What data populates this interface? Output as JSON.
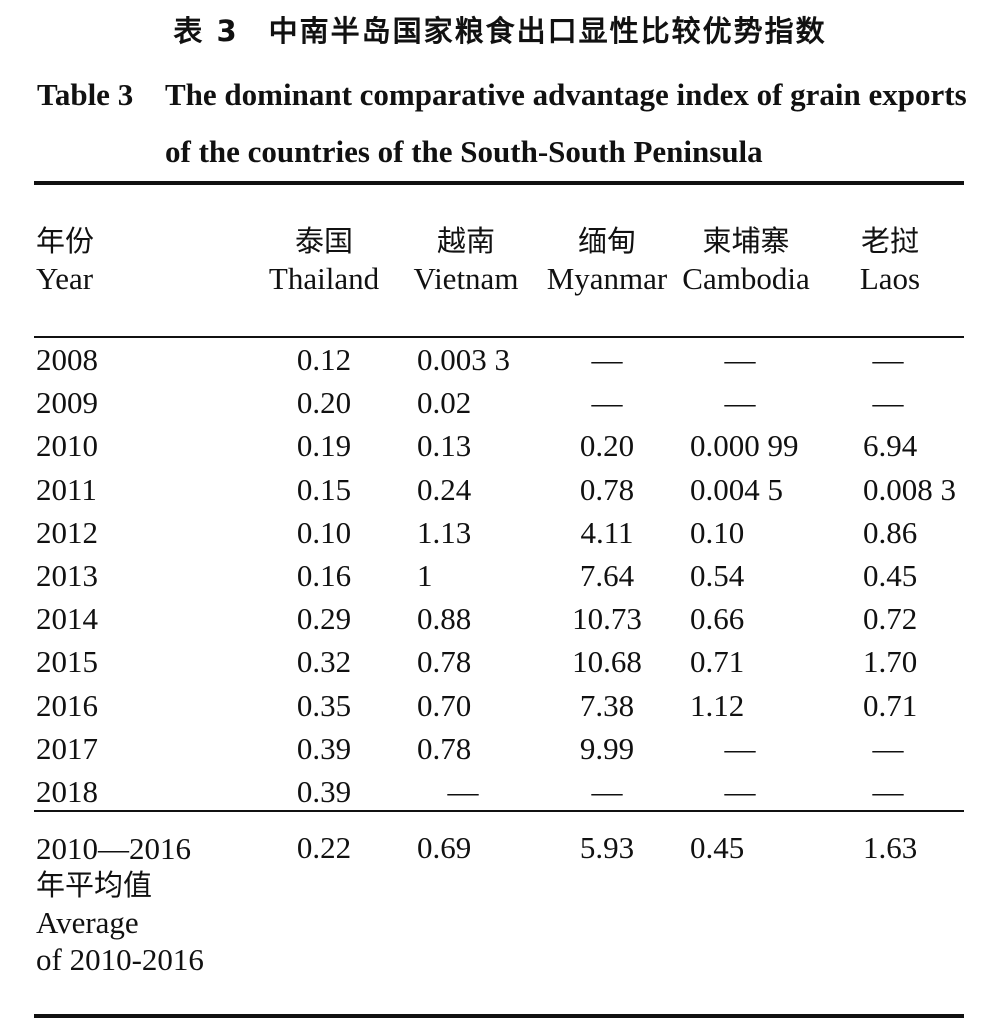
{
  "title_cn": {
    "label": "表 3",
    "text": "中南半岛国家粮食出口显性比较优势指数"
  },
  "title_en": {
    "label": "Table 3",
    "text": "The dominant comparative advantage index of grain exports of the countries of the South-South Peninsula"
  },
  "columns": [
    {
      "cn": "年份",
      "en": "Year"
    },
    {
      "cn": "泰国",
      "en": "Thailand"
    },
    {
      "cn": "越南",
      "en": "Vietnam"
    },
    {
      "cn": "缅甸",
      "en": "Myanmar"
    },
    {
      "cn": "柬埔寨",
      "en": "Cambodia"
    },
    {
      "cn": "老挝",
      "en": "Laos"
    }
  ],
  "rows": [
    {
      "year": "2008",
      "thailand": "0.12",
      "vietnam": "0.003 3",
      "myanmar": "—",
      "cambodia": "—",
      "laos": "—"
    },
    {
      "year": "2009",
      "thailand": "0.20",
      "vietnam": "0.02",
      "myanmar": "—",
      "cambodia": "—",
      "laos": "—"
    },
    {
      "year": "2010",
      "thailand": "0.19",
      "vietnam": "0.13",
      "myanmar": "0.20",
      "cambodia": "0.000 99",
      "laos": "6.94"
    },
    {
      "year": "2011",
      "thailand": "0.15",
      "vietnam": "0.24",
      "myanmar": "0.78",
      "cambodia": "0.004 5",
      "laos": "0.008 3"
    },
    {
      "year": "2012",
      "thailand": "0.10",
      "vietnam": "1.13",
      "myanmar": "4.11",
      "cambodia": "0.10",
      "laos": "0.86"
    },
    {
      "year": "2013",
      "thailand": "0.16",
      "vietnam": "1",
      "myanmar": "7.64",
      "cambodia": "0.54",
      "laos": "0.45"
    },
    {
      "year": "2014",
      "thailand": "0.29",
      "vietnam": "0.88",
      "myanmar": "10.73",
      "cambodia": "0.66",
      "laos": "0.72"
    },
    {
      "year": "2015",
      "thailand": "0.32",
      "vietnam": "0.78",
      "myanmar": "10.68",
      "cambodia": "0.71",
      "laos": "1.70"
    },
    {
      "year": "2016",
      "thailand": "0.35",
      "vietnam": "0.70",
      "myanmar": "7.38",
      "cambodia": "1.12",
      "laos": "0.71"
    },
    {
      "year": "2017",
      "thailand": "0.39",
      "vietnam": "0.78",
      "myanmar": "9.99",
      "cambodia": "—",
      "laos": "—"
    },
    {
      "year": "2018",
      "thailand": "0.39",
      "vietnam": "—",
      "myanmar": "—",
      "cambodia": "—",
      "laos": "—"
    }
  ],
  "average": {
    "label_year": "2010—2016",
    "label_cn": "年平均值",
    "label_en_1": "Average",
    "label_en_2": "of 2010-2016",
    "thailand": "0.22",
    "vietnam": "0.69",
    "myanmar": "5.93",
    "cambodia": "0.45",
    "laos": "1.63"
  }
}
